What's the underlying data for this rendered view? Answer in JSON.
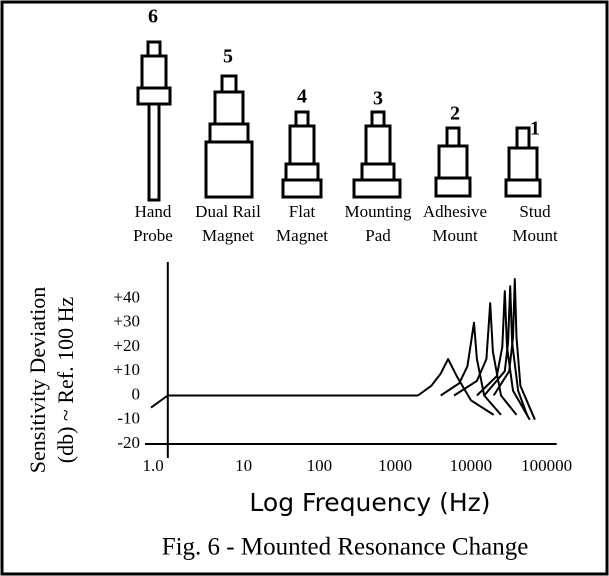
{
  "mounts": [
    {
      "number": "6",
      "label": [
        "Hand",
        "Probe"
      ]
    },
    {
      "number": "5",
      "label": [
        "Dual Rail",
        "Magnet"
      ]
    },
    {
      "number": "4",
      "label": [
        "Flat",
        "Magnet"
      ]
    },
    {
      "number": "3",
      "label": [
        "Mounting",
        "Pad"
      ]
    },
    {
      "number": "2",
      "label": [
        "Adhesive",
        "Mount"
      ]
    },
    {
      "number": "1",
      "label": [
        "Stud",
        "Mount"
      ]
    }
  ],
  "chart_data": {
    "type": "line",
    "ylabel": [
      "Sensitivity Deviation",
      "(db) ~ Ref. 100 Hz"
    ],
    "xlabel": "Log Frequency (Hz)",
    "caption": "Fig. 6 - Mounted Resonance Change",
    "xscale": "log",
    "xlim": [
      0.5,
      150000
    ],
    "ylim": [
      -20,
      55
    ],
    "xticks": [
      {
        "value": 1,
        "label": "1.0"
      },
      10,
      100,
      1000,
      10000,
      100000
    ],
    "yticks": [
      {
        "value": 40,
        "label": "+40"
      },
      {
        "value": 30,
        "label": "+30"
      },
      {
        "value": 20,
        "label": "+20"
      },
      {
        "value": 10,
        "label": "+10"
      },
      0,
      -10,
      -20
    ],
    "series": [
      {
        "color": "#000000",
        "x": [
          0.6,
          1,
          2000
        ],
        "values": [
          -5,
          0,
          0
        ]
      },
      {
        "color": "#000000",
        "x": [
          2000,
          3000,
          4000,
          5000,
          6500,
          10000,
          20000
        ],
        "values": [
          0,
          4,
          9,
          15,
          8,
          -2,
          -8
        ]
      },
      {
        "color": "#000000",
        "x": [
          4000,
          7000,
          9000,
          11000,
          12000,
          15000,
          25000
        ],
        "values": [
          0,
          5,
          12,
          30,
          15,
          0,
          -8
        ]
      },
      {
        "color": "#000000",
        "x": [
          6000,
          12000,
          16000,
          18000,
          19500,
          25000,
          40000
        ],
        "values": [
          0,
          6,
          15,
          38,
          18,
          0,
          -8
        ]
      },
      {
        "color": "#000000",
        "x": [
          12000,
          22000,
          26000,
          28000,
          30000,
          36000,
          60000
        ],
        "values": [
          0,
          8,
          20,
          43,
          20,
          2,
          -10
        ]
      },
      {
        "color": "#000000",
        "x": [
          15000,
          28000,
          31000,
          33000,
          35000,
          42000,
          55000
        ],
        "values": [
          0,
          10,
          22,
          45,
          22,
          2,
          -8
        ]
      },
      {
        "color": "#000000",
        "x": [
          20000,
          32000,
          36000,
          38000,
          40000,
          45000,
          70000
        ],
        "values": [
          0,
          10,
          24,
          48,
          24,
          4,
          -10
        ]
      }
    ]
  }
}
